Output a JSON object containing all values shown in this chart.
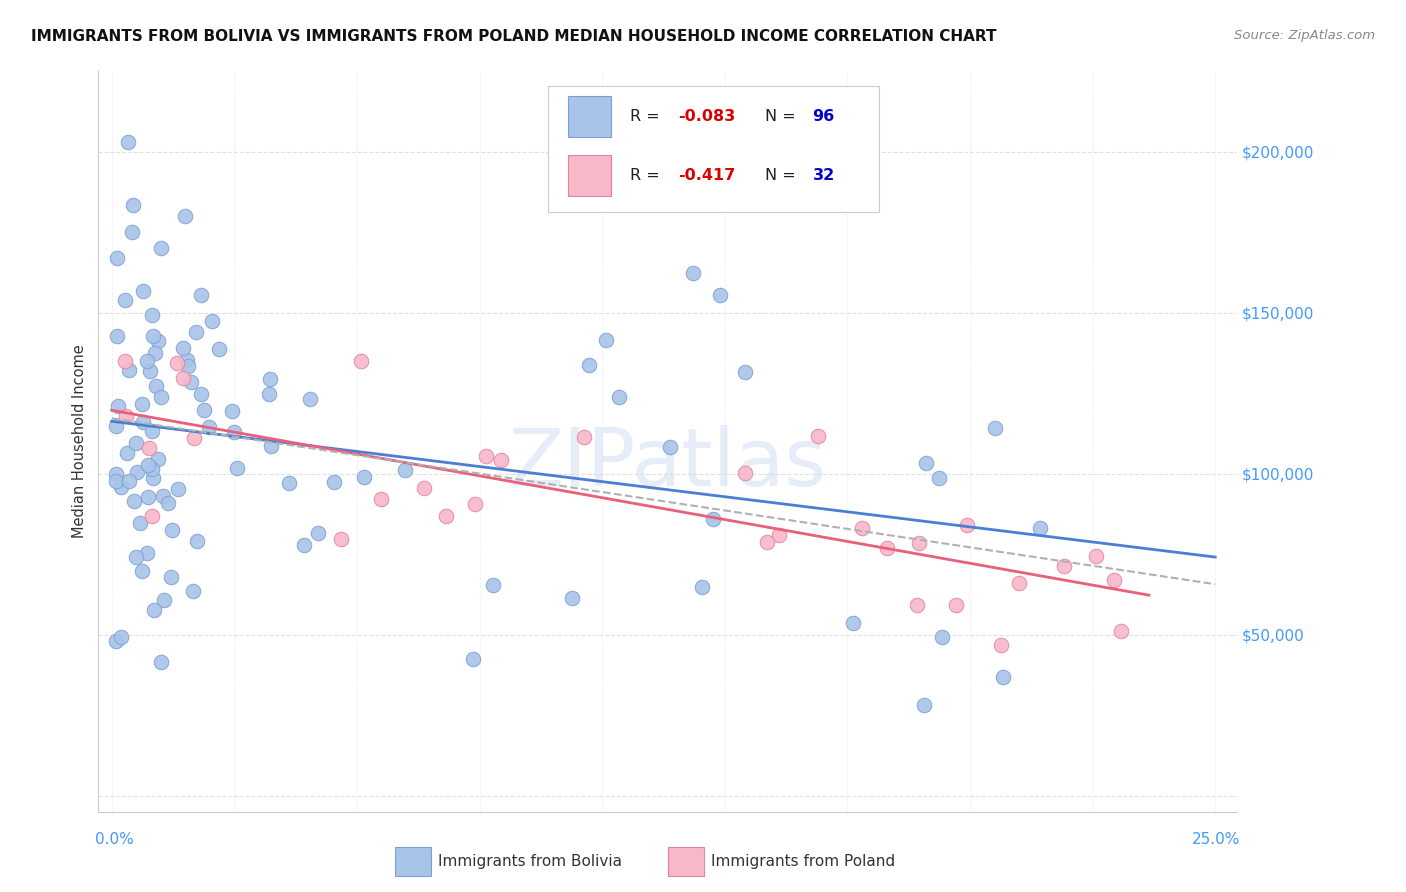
{
  "title": "IMMIGRANTS FROM BOLIVIA VS IMMIGRANTS FROM POLAND MEDIAN HOUSEHOLD INCOME CORRELATION CHART",
  "source": "Source: ZipAtlas.com",
  "ylabel": "Median Household Income",
  "bolivia_color": "#a8c4e8",
  "bolivia_edge": "#7aa0d4",
  "poland_color": "#f7b8c8",
  "poland_edge": "#e880a0",
  "trend_bolivia_color": "#4a7fd4",
  "trend_poland_color": "#e8607a",
  "trend_dashed_color": "#b0b0b0",
  "watermark": "ZIPatlas",
  "background_color": "#ffffff",
  "grid_color": "#e0e0e0",
  "ytick_color": "#4499ff",
  "title_color": "#111111",
  "source_color": "#888888",
  "label_color": "#333333",
  "R_color": "#dd0000",
  "N_color": "#0000cc"
}
